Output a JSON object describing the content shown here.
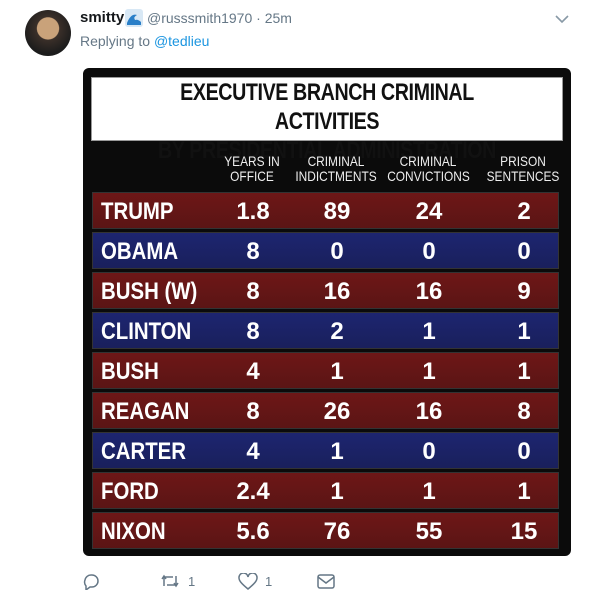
{
  "tweet": {
    "name": "smitty",
    "meta": "@russsmith1970 · 25m",
    "replying_to": "Replying to",
    "reply_handle": "@tedlieu",
    "image": {
      "title_lines": [
        "EXECUTIVE BRANCH CRIMINAL ACTIVITIES",
        "BY PRESIDENTIAL ADMINISTRATION"
      ],
      "columns": [
        [
          "YEARS IN",
          "OFFICE"
        ],
        [
          "CRIMINAL",
          "INDICTMENTS"
        ],
        [
          "CRIMINAL",
          "CONVICTIONS"
        ],
        [
          "PRISON",
          "SENTENCES"
        ]
      ],
      "rows": [
        {
          "name": "TRUMP",
          "color": "#6e1717",
          "values": [
            1.8,
            89,
            24,
            2
          ]
        },
        {
          "name": "OBAMA",
          "color": "#1d2570",
          "values": [
            8,
            0,
            0,
            0
          ]
        },
        {
          "name": "BUSH (W)",
          "color": "#6e1717",
          "values": [
            8,
            16,
            16,
            9
          ]
        },
        {
          "name": "CLINTON",
          "color": "#1d2570",
          "values": [
            8,
            2,
            1,
            1
          ]
        },
        {
          "name": "BUSH",
          "color": "#6e1717",
          "values": [
            4,
            1,
            1,
            1
          ]
        },
        {
          "name": "REAGAN",
          "color": "#6e1717",
          "values": [
            8,
            26,
            16,
            8
          ]
        },
        {
          "name": "CARTER",
          "color": "#1d2570",
          "values": [
            4,
            1,
            0,
            0
          ]
        },
        {
          "name": "FORD",
          "color": "#6e1717",
          "values": [
            2.4,
            1,
            1,
            1
          ]
        },
        {
          "name": "NIXON",
          "color": "#6e1717",
          "values": [
            5.6,
            76,
            55,
            15
          ]
        }
      ]
    },
    "retweets": 1,
    "likes": 1
  }
}
